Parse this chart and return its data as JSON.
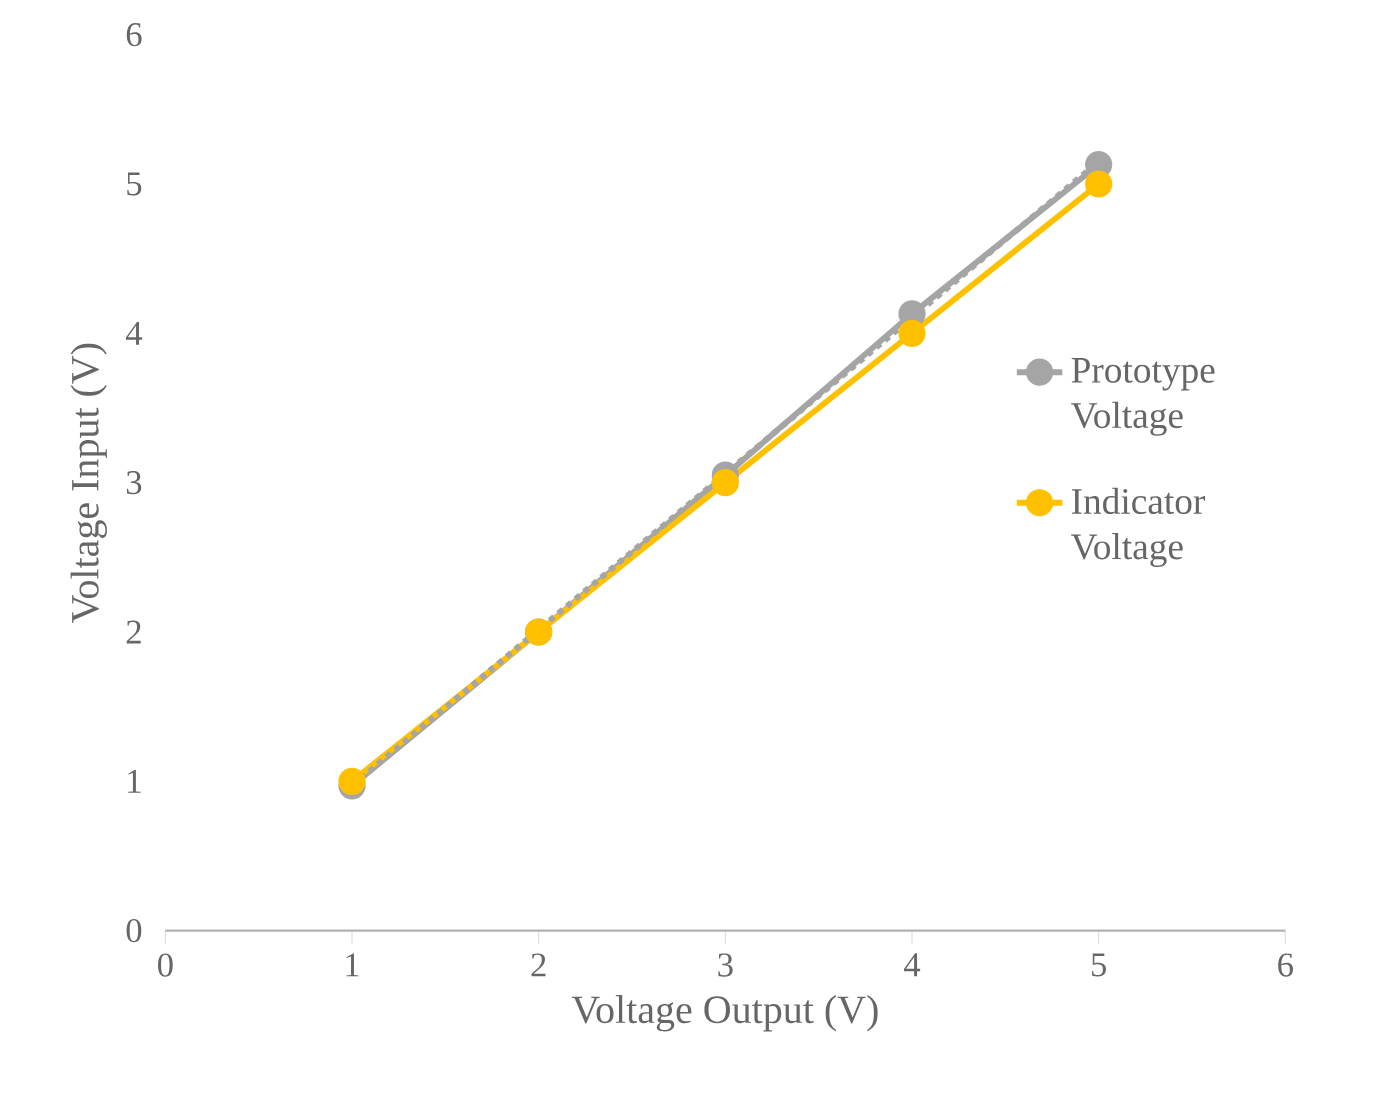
{
  "chart_data": {
    "type": "line",
    "xlabel": "Voltage Output (V)",
    "ylabel": "Voltage Input (V)",
    "x": [
      1,
      2,
      3,
      4,
      5
    ],
    "series": [
      {
        "name": "Prototype Voltage",
        "color": "#a5a5a5",
        "values": [
          0.97,
          2.0,
          3.05,
          4.13,
          5.13
        ]
      },
      {
        "name": "Indicator Voltage",
        "color": "#ffc000",
        "values": [
          1,
          2,
          3,
          4,
          5
        ]
      },
      {
        "type": "line",
        "color": "#a5a5a5",
        "line_style": "dotted",
        "marker": "none",
        "x": [
          1,
          5
        ],
        "values": [
          0.97,
          5.15
        ]
      }
    ],
    "xlim": [
      0,
      6
    ],
    "ylim": [
      0,
      6
    ],
    "xticks": [
      0,
      1,
      2,
      3,
      4,
      5,
      6
    ],
    "yticks": [
      0,
      1,
      2,
      3,
      4,
      5,
      6
    ],
    "grid": false,
    "legend": "right",
    "marker": "circle",
    "line_style": "solid"
  }
}
